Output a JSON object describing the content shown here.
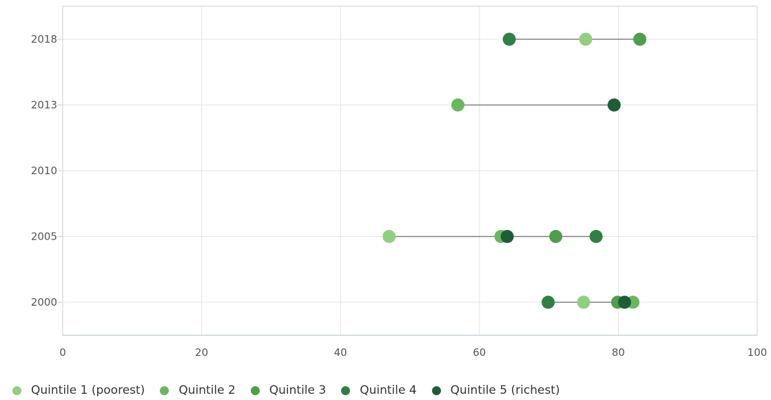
{
  "chart_data": {
    "type": "scatter",
    "subtype": "dumbbell",
    "title": "",
    "xlabel": "",
    "ylabel": "",
    "xlim": [
      0,
      100
    ],
    "x_ticks": [
      0,
      20,
      40,
      60,
      80,
      100
    ],
    "categories": [
      "2018",
      "2013",
      "2010",
      "2005",
      "2000"
    ],
    "grid": true,
    "legend_position": "bottom-left",
    "series": [
      {
        "name": "Quintile 1 (poorest)",
        "color": "#8fd080",
        "values": {
          "2018": 75.3,
          "2005": 47.0,
          "2000": 75.0
        }
      },
      {
        "name": "Quintile 2",
        "color": "#6ab85e",
        "values": {
          "2013": 56.9,
          "2005": 63.1,
          "2000": 82.1
        }
      },
      {
        "name": "Quintile 3",
        "color": "#4e9e4c",
        "values": {
          "2018": 83.1,
          "2005": 71.0,
          "2000": 79.9
        }
      },
      {
        "name": "Quintile 4",
        "color": "#2f8044",
        "values": {
          "2018": 64.3,
          "2005": 76.8,
          "2000": 69.9
        }
      },
      {
        "name": "Quintile 5 (richest)",
        "color": "#1d5e35",
        "values": {
          "2013": 79.4,
          "2005": 64.0,
          "2000": 80.9
        }
      }
    ]
  }
}
